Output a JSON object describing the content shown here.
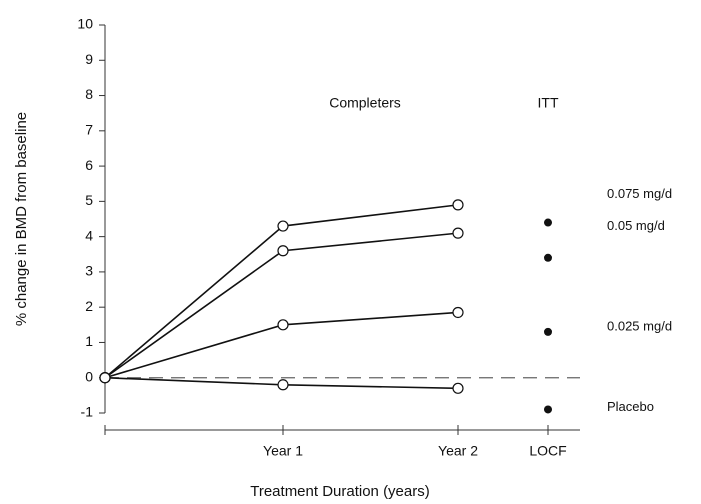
{
  "chart_data": {
    "type": "line",
    "xlabel": "Treatment Duration (years)",
    "ylabel": "% change in BMD from baseline",
    "annotations": [
      "Completers",
      "ITT"
    ],
    "categories": [
      null,
      "Year 1",
      "Year 2",
      "LOCF"
    ],
    "series": [
      {
        "name": "0.075 mg/d",
        "color": "#111111",
        "values": [
          0,
          4.3,
          4.9,
          4.4
        ]
      },
      {
        "name": "0.05 mg/d",
        "color": "#111111",
        "values": [
          0,
          3.6,
          4.1,
          3.4
        ]
      },
      {
        "name": "0.025 mg/d",
        "color": "#111111",
        "values": [
          0,
          1.5,
          1.85,
          1.3
        ]
      },
      {
        "name": "Placebo",
        "color": "#111111",
        "values": [
          0,
          -0.2,
          -0.3,
          -0.9
        ]
      }
    ],
    "reference_line": 0,
    "ylim": [
      -1,
      10
    ],
    "yticks": [
      -1,
      0,
      1,
      2,
      3,
      4,
      5,
      6,
      7,
      8,
      9,
      10
    ]
  }
}
